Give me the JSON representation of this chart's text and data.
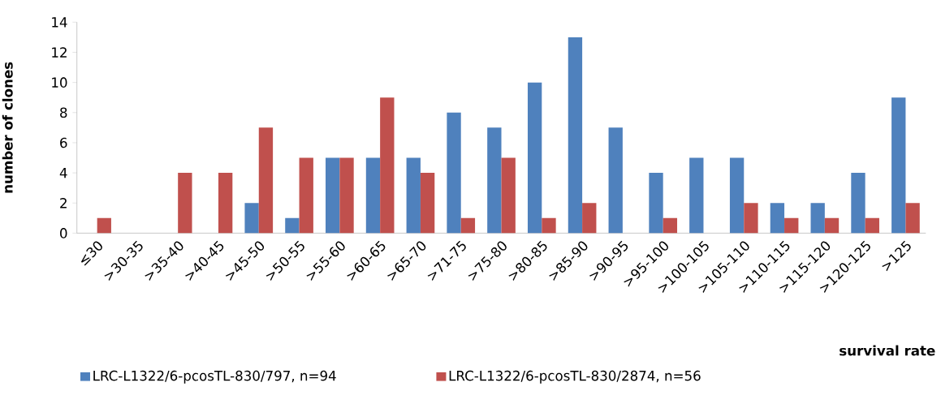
{
  "chart_data": {
    "type": "bar",
    "xlabel": "survival rate",
    "ylabel": "number of clones",
    "categories": [
      "≤30",
      ">30-35",
      ">35-40",
      ">40-45",
      ">45-50",
      ">50-55",
      ">55-60",
      ">60-65",
      ">65-70",
      ">71-75",
      ">75-80",
      ">80-85",
      ">85-90",
      ">90-95",
      ">95-100",
      ">100-105",
      ">105-110",
      ">110-115",
      ">115-120",
      ">120-125",
      ">125"
    ],
    "series": [
      {
        "name": "LRC-L1322/6-pcosTL-830/797, n=94",
        "color": "#4f81bd",
        "values": [
          0,
          0,
          0,
          0,
          2,
          1,
          5,
          5,
          5,
          8,
          7,
          10,
          13,
          7,
          4,
          5,
          5,
          2,
          2,
          4,
          9
        ]
      },
      {
        "name": "LRC-L1322/6-pcosTL-830/2874, n=56",
        "color": "#c0504d",
        "values": [
          1,
          0,
          4,
          4,
          7,
          5,
          5,
          9,
          4,
          1,
          5,
          1,
          2,
          0,
          1,
          0,
          2,
          1,
          1,
          1,
          2
        ]
      }
    ],
    "ylim": [
      0,
      14
    ],
    "yticks": [
      0,
      2,
      4,
      6,
      8,
      10,
      12,
      14
    ],
    "legend": "bottom"
  }
}
